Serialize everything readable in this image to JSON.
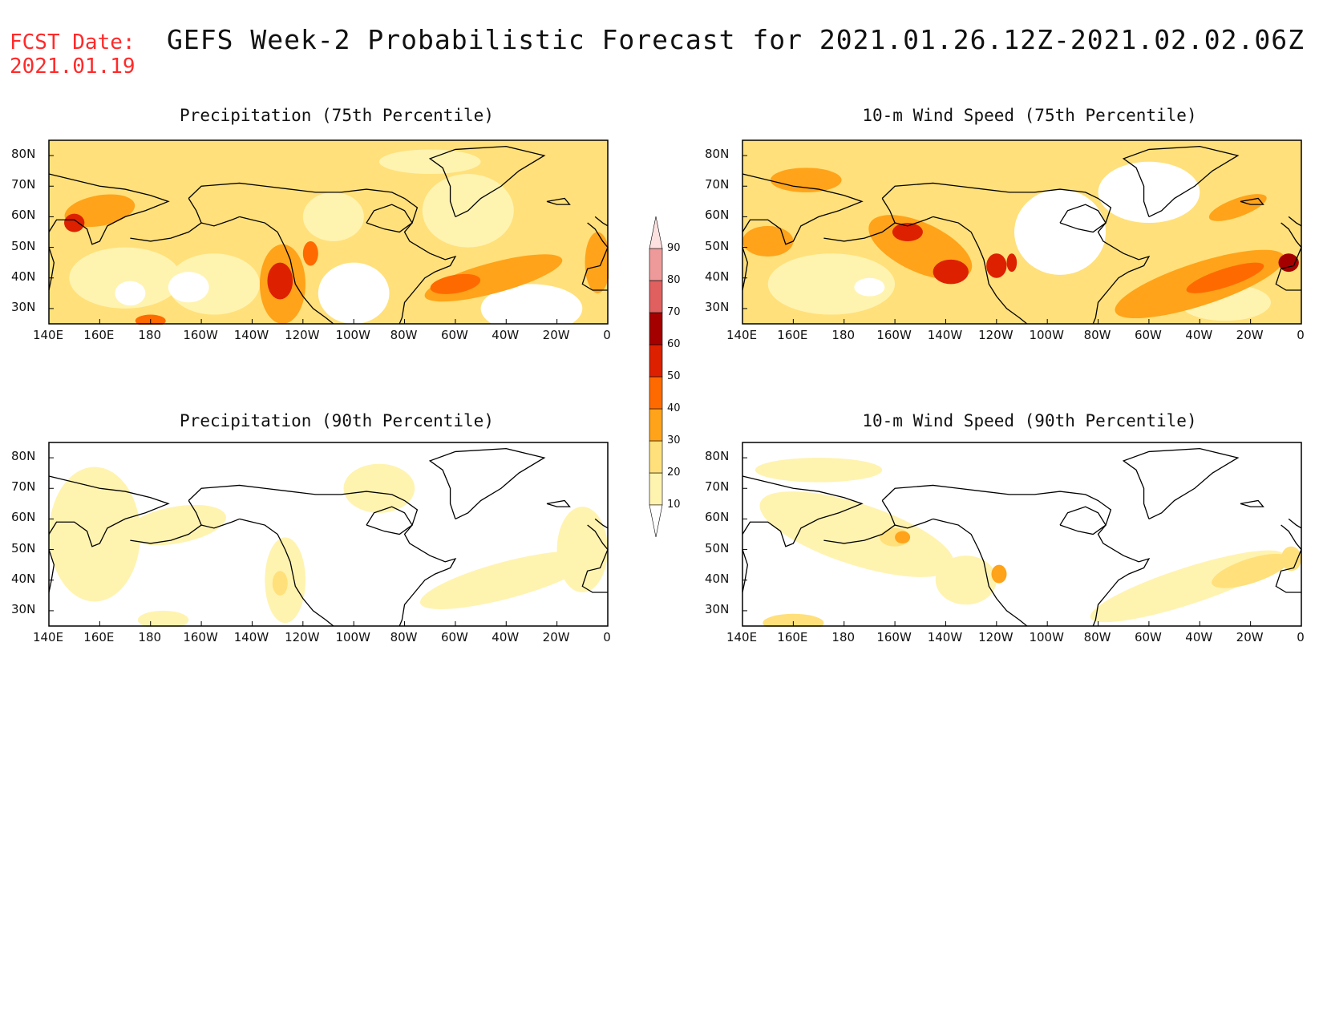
{
  "fcst_date": {
    "label": "FCST Date:",
    "value": "2021.01.19"
  },
  "title": "GEFS Week-2 Probabilistic Forecast for 2021.01.26.12Z-2021.02.02.06Z",
  "colors": {
    "c10": "#ffffff",
    "c10_20": "#fff3b0",
    "c20_30": "#ffe07a",
    "c30_40": "#ffa31a",
    "c40_50": "#ff6a00",
    "c50_60": "#dd2000",
    "c60_70": "#a50000",
    "c70_80": "#e06060",
    "c80_90": "#ef9a9a",
    "c90": "#fde0e0",
    "coast": "#000000"
  },
  "legend": {
    "levels": [
      "10",
      "20",
      "30",
      "40",
      "50",
      "60",
      "70",
      "80",
      "90"
    ]
  },
  "axes": {
    "lat_labels": [
      "80N",
      "70N",
      "60N",
      "50N",
      "40N",
      "30N"
    ],
    "lon_labels": [
      "140E",
      "160E",
      "180",
      "160W",
      "140W",
      "120W",
      "100W",
      "80W",
      "60W",
      "40W",
      "20W",
      "0"
    ]
  },
  "panels": [
    {
      "id": "precip75",
      "title": "Precipitation (75th Percentile)"
    },
    {
      "id": "wind75",
      "title": "10-m Wind Speed (75th Percentile)"
    },
    {
      "id": "precip90",
      "title": "Precipitation (90th Percentile)"
    },
    {
      "id": "wind90",
      "title": "10-m Wind Speed (90th Percentile)"
    }
  ]
}
